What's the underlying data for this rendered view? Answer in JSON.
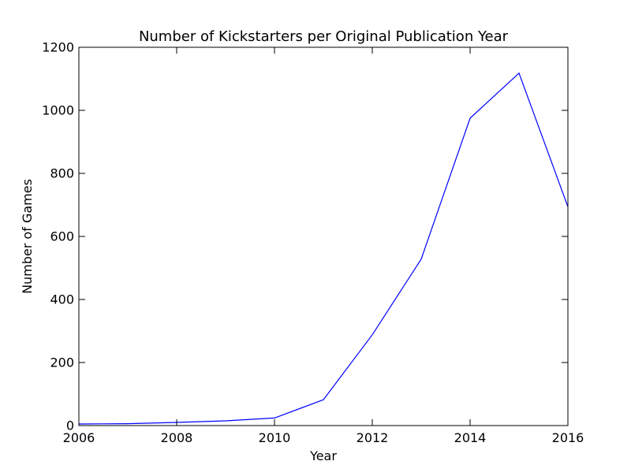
{
  "chart_data": {
    "type": "line",
    "title": "Number of Kickstarters per Original Publication Year",
    "xlabel": "Year",
    "ylabel": "Number of Games",
    "xlim": [
      2006,
      2016
    ],
    "ylim": [
      0,
      1200
    ],
    "xticks": [
      "2006",
      "2008",
      "2010",
      "2012",
      "2014",
      "2016"
    ],
    "yticks": [
      "0",
      "200",
      "400",
      "600",
      "800",
      "1000",
      "1200"
    ],
    "grid": false,
    "series": [
      {
        "color": "#0000ff",
        "x": [
          2006,
          2007,
          2008,
          2009,
          2010,
          2011,
          2012,
          2013,
          2014,
          2015,
          2016
        ],
        "y": [
          5,
          6,
          10,
          15,
          24,
          82,
          288,
          528,
          975,
          1118,
          694
        ]
      }
    ]
  }
}
